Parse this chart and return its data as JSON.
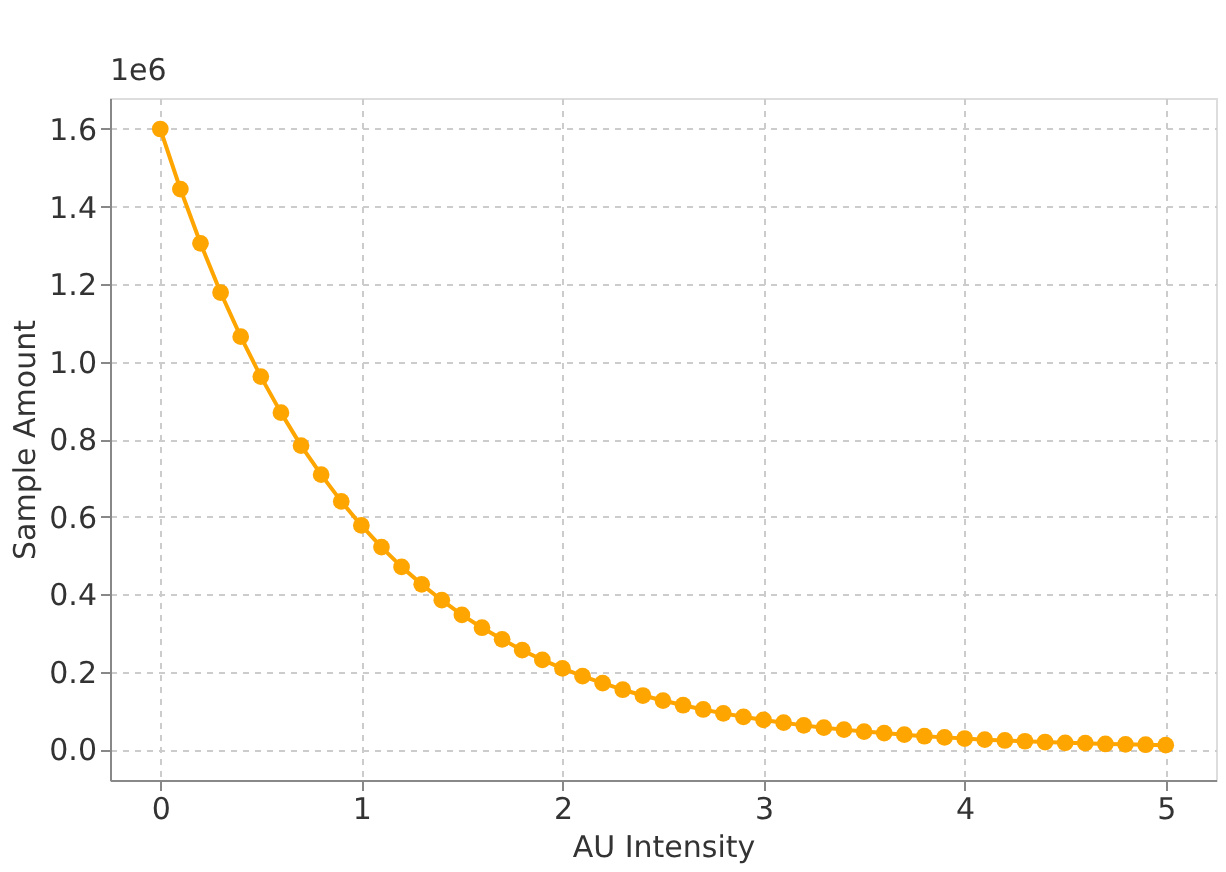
{
  "chart_data": {
    "type": "line",
    "xlabel": "AU Intensity",
    "ylabel": "Sample Amount",
    "annotations": [
      "1e6"
    ],
    "x": [
      0,
      0.1,
      0.2,
      0.3,
      0.4,
      0.5,
      0.6,
      0.7,
      0.8,
      0.9,
      1,
      1.1,
      1.2,
      1.3,
      1.4,
      1.5,
      1.6,
      1.7,
      1.8,
      1.9,
      2,
      2.1,
      2.2,
      2.3,
      2.4,
      2.5,
      2.6,
      2.7,
      2.8,
      2.9,
      3,
      3.1,
      3.2,
      3.3,
      3.4,
      3.5,
      3.6,
      3.7,
      3.8,
      3.9,
      4,
      4.1,
      4.2,
      4.3,
      4.4,
      4.5,
      4.6,
      4.7,
      4.8,
      4.9,
      5
    ],
    "series": [
      {
        "color": "#ffa500",
        "values": [
          1.6,
          1.445,
          1.305,
          1.178,
          1.064,
          0.961,
          0.868,
          0.783,
          0.708,
          0.639,
          0.577,
          0.521,
          0.47,
          0.425,
          0.384,
          0.346,
          0.313,
          0.283,
          0.255,
          0.23,
          0.208,
          0.188,
          0.17,
          0.153,
          0.138,
          0.125,
          0.113,
          0.102,
          0.092,
          0.083,
          0.075,
          0.068,
          0.061,
          0.055,
          0.05,
          0.045,
          0.041,
          0.037,
          0.033,
          0.03,
          0.027,
          0.024,
          0.022,
          0.02,
          0.018,
          0.016,
          0.015,
          0.013,
          0.012,
          0.011,
          0.01
        ]
      }
    ],
    "xlim": [
      -0.25,
      5.25
    ],
    "xticks": [
      0,
      1,
      2,
      3,
      4,
      5
    ],
    "ylim": [
      -0.08,
      1.68
    ],
    "yticks": [
      {
        "value": 0,
        "label": "0.0"
      },
      0.2,
      0.4,
      0.6,
      0.8,
      {
        "value": 1,
        "label": "1.0"
      },
      1.2,
      1.4,
      1.6
    ],
    "grid": true,
    "marker": "circle",
    "line_style": "solid"
  }
}
